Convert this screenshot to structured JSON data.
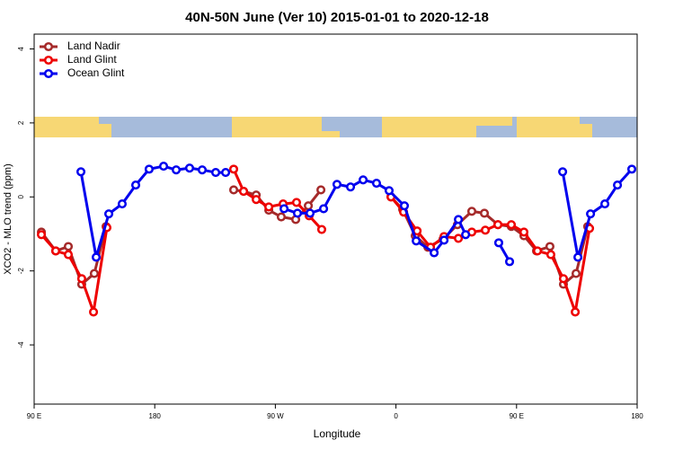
{
  "chart_data": {
    "type": "line",
    "title": "40N-50N June (Ver 10)   2015-01-01 to 2020-12-18",
    "x_label": "Longitude",
    "y_label": "XCO2 - MLO trend (ppm)",
    "xlim": [
      90,
      540
    ],
    "xticks": [
      {
        "value": 90,
        "label": "90 E"
      },
      {
        "value": 180,
        "label": "180"
      },
      {
        "value": 270,
        "label": "90 W"
      },
      {
        "value": 360,
        "label": "0"
      },
      {
        "value": 450,
        "label": "90 E"
      },
      {
        "value": 540,
        "label": "180"
      }
    ],
    "ylim": [
      -5.6,
      4.4
    ],
    "yticks": [
      -4,
      -2,
      0,
      2,
      4
    ],
    "legend": "top-left",
    "series": [
      {
        "name": "Land Nadir",
        "color": "#a52a2a",
        "x": [
          95.4,
          106.1,
          115.5,
          125.5,
          134.9,
          143.7,
          null,
          238.9,
          246.3,
          255.7,
          265.1,
          274.4,
          285.2,
          294.6,
          304.0,
          null,
          356.3,
          365.0,
          374.4,
          383.8,
          395.2,
          405.9,
          416.6,
          426.0,
          436.1,
          446.1,
          455.5,
          464.9,
          474.9,
          485.0,
          494.4,
          503.1
        ],
        "values": [
          -0.95,
          -1.46,
          -1.34,
          -2.36,
          -2.07,
          -0.8,
          null,
          0.19,
          0.15,
          0.05,
          -0.36,
          -0.54,
          -0.61,
          -0.24,
          0.19,
          null,
          0,
          -0.34,
          -1.05,
          -1.36,
          -1.14,
          -0.75,
          -0.39,
          -0.44,
          -0.75,
          -0.8,
          -1.05,
          -1.46,
          -1.34,
          -2.36,
          -2.07,
          -0.8
        ]
      },
      {
        "name": "Land Glint",
        "color": "#ee0000",
        "x": [
          95.4,
          106.1,
          115.5,
          125.5,
          134.3,
          144.3,
          null,
          238.9,
          246.3,
          255.7,
          265.1,
          275.8,
          285.8,
          295.2,
          304.6,
          null,
          356.3,
          365.7,
          375.8,
          385.8,
          395.9,
          406.6,
          416.6,
          426.7,
          436.1,
          446.1,
          455.5,
          465.6,
          475.6,
          485.0,
          493.8,
          504.5
        ],
        "values": [
          -1.02,
          -1.46,
          -1.56,
          -2.21,
          -3.11,
          -0.83,
          null,
          0.75,
          0.15,
          -0.07,
          -0.27,
          -0.19,
          -0.15,
          -0.51,
          -0.88,
          null,
          0,
          -0.41,
          -0.92,
          -1.36,
          -1.07,
          -1.12,
          -0.95,
          -0.9,
          -0.75,
          -0.75,
          -0.95,
          -1.46,
          -1.56,
          -2.21,
          -3.11,
          -0.85
        ]
      },
      {
        "name": "Ocean Glint",
        "color": "#0000ee",
        "x": [
          124.9,
          136.3,
          145.7,
          155.7,
          165.8,
          175.8,
          186.6,
          196.0,
          206.0,
          215.4,
          225.5,
          232.9,
          null,
          276.5,
          286.5,
          295.9,
          306.0,
          316.0,
          326.1,
          335.5,
          345.5,
          354.9,
          366.3,
          375.1,
          388.5,
          395.9,
          406.6,
          412.0,
          null,
          436.7,
          444.8,
          null,
          484.4,
          495.8,
          505.2,
          515.9,
          525.3,
          536.0
        ],
        "values": [
          0.68,
          -1.63,
          -0.46,
          -0.19,
          0.32,
          0.75,
          0.83,
          0.73,
          0.78,
          0.73,
          0.66,
          0.66,
          null,
          -0.32,
          -0.44,
          -0.44,
          -0.32,
          0.34,
          0.27,
          0.46,
          0.37,
          0.17,
          -0.24,
          -1.19,
          -1.51,
          -1.17,
          -0.61,
          -1.02,
          null,
          -1.24,
          -1.75,
          null,
          0.68,
          -1.63,
          -0.46,
          -0.19,
          0.32,
          0.75
        ]
      }
    ]
  }
}
